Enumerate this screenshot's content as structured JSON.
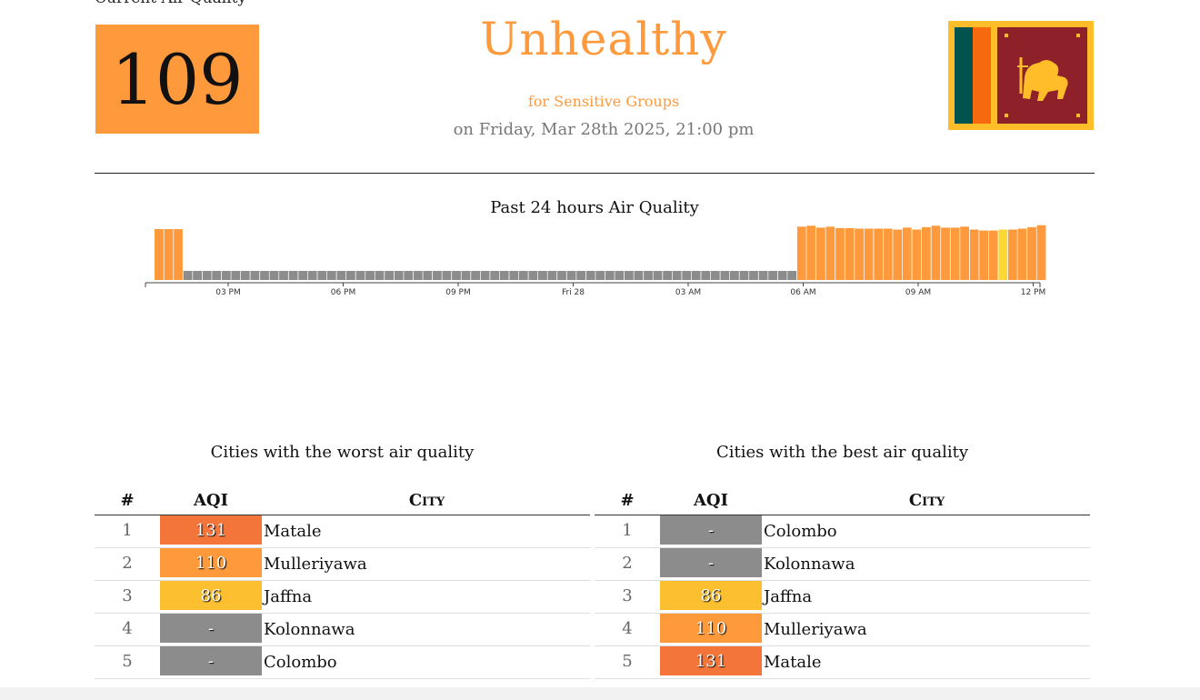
{
  "current": {
    "label": "Current Air Quality",
    "aqi": "109",
    "aqi_color": "#ff9a3c",
    "status": "Unhealthy",
    "substatus": "for Sensitive Groups",
    "status_color": "#ff9a3c",
    "datetime": "on Friday, Mar 28th 2025, 21:00 pm"
  },
  "flag": {
    "icon": "sri-lanka-flag-icon"
  },
  "chart_data": {
    "type": "bar",
    "title": "Past 24 hours Air Quality",
    "x_tick_labels": [
      "03 PM",
      "06 PM",
      "09 PM",
      "Fri 28",
      "03 AM",
      "06 AM",
      "09 AM",
      "12 PM"
    ],
    "bars_per_tick": 12,
    "bar_slot_start": 1,
    "values": [
      105,
      105,
      105,
      null,
      null,
      null,
      null,
      null,
      null,
      null,
      null,
      null,
      null,
      null,
      null,
      null,
      null,
      null,
      null,
      null,
      null,
      null,
      null,
      null,
      null,
      null,
      null,
      null,
      null,
      null,
      null,
      null,
      null,
      null,
      null,
      null,
      null,
      null,
      null,
      null,
      null,
      null,
      null,
      null,
      null,
      null,
      null,
      null,
      null,
      null,
      null,
      null,
      null,
      null,
      null,
      null,
      null,
      null,
      null,
      null,
      null,
      null,
      null,
      null,
      null,
      null,
      null,
      110,
      112,
      108,
      110,
      107,
      107,
      106,
      106,
      106,
      106,
      104,
      108,
      104,
      109,
      112,
      108,
      108,
      110,
      104,
      102,
      102,
      104,
      104,
      106,
      109,
      113
    ],
    "missing_value_height": 18,
    "max_value": 120,
    "colors": {
      "unhealthy_sensitive": "#ff9a3c",
      "moderate": "#fdd835",
      "missing": "#8c8c8c"
    },
    "moderate_indices": [
      88,
      98,
      99
    ]
  },
  "worst": {
    "title": "Cities with the worst air quality",
    "headers": {
      "rank": "#",
      "aqi": "AQI",
      "city": "City"
    },
    "rows": [
      {
        "rank": "1",
        "aqi": "131",
        "city": "Matale",
        "color": "#f4753a"
      },
      {
        "rank": "2",
        "aqi": "110",
        "city": "Mulleriyawa",
        "color": "#ff9a3c"
      },
      {
        "rank": "3",
        "aqi": "86",
        "city": "Jaffna",
        "color": "#fbbf2f"
      },
      {
        "rank": "4",
        "aqi": "-",
        "city": "Kolonnawa",
        "color": "#8c8c8c"
      },
      {
        "rank": "5",
        "aqi": "-",
        "city": "Colombo",
        "color": "#8c8c8c"
      }
    ]
  },
  "best": {
    "title": "Cities with the best air quality",
    "headers": {
      "rank": "#",
      "aqi": "AQI",
      "city": "City"
    },
    "rows": [
      {
        "rank": "1",
        "aqi": "-",
        "city": "Colombo",
        "color": "#8c8c8c"
      },
      {
        "rank": "2",
        "aqi": "-",
        "city": "Kolonnawa",
        "color": "#8c8c8c"
      },
      {
        "rank": "3",
        "aqi": "86",
        "city": "Jaffna",
        "color": "#fbbf2f"
      },
      {
        "rank": "4",
        "aqi": "110",
        "city": "Mulleriyawa",
        "color": "#ff9a3c"
      },
      {
        "rank": "5",
        "aqi": "131",
        "city": "Matale",
        "color": "#f4753a"
      }
    ]
  }
}
